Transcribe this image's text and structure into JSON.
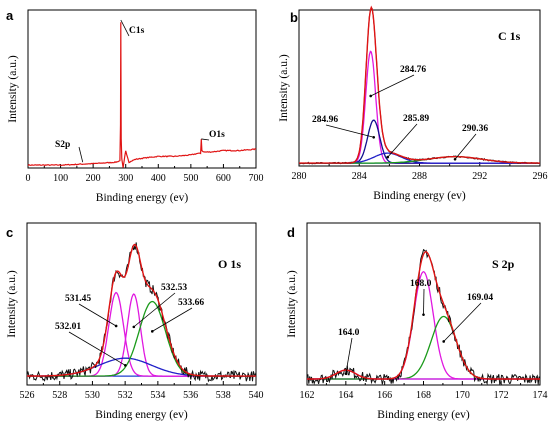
{
  "colors": {
    "raw": "#111111",
    "envelope": "#e01414",
    "baseline": "#1f3fd0",
    "comp_magenta": "#e018e0",
    "comp_blue": "#2020c8",
    "comp_green": "#1a9a1a",
    "comp_navy": "#101090",
    "survey": "#e01414"
  },
  "chart_data": [
    {
      "type": "line",
      "panel_label": "a",
      "xlabel": "Binding energy (ev)",
      "ylabel": "Intensity (a.u.)",
      "xlim": [
        0,
        700
      ],
      "xticks": [
        0,
        100,
        200,
        300,
        400,
        500,
        600,
        700
      ],
      "annotations": [
        {
          "text": "C1s",
          "x": 285
        },
        {
          "text": "O1s",
          "x": 532
        },
        {
          "text": "S2p",
          "x": 168
        }
      ],
      "series": [
        {
          "values_desc": "survey",
          "x": [
            0,
            100,
            200,
            270,
            282,
            284,
            285,
            286,
            288,
            292,
            300,
            310,
            330,
            360,
            400,
            450,
            500,
            520,
            530,
            532,
            534,
            540,
            560,
            600,
            650,
            700
          ],
          "y": [
            0.02,
            0.02,
            0.03,
            0.04,
            0.05,
            0.3,
            1.0,
            0.2,
            0.06,
            0.0,
            0.12,
            0.04,
            0.06,
            0.07,
            0.08,
            0.08,
            0.09,
            0.1,
            0.1,
            0.2,
            0.12,
            0.11,
            0.11,
            0.12,
            0.12,
            0.13
          ]
        }
      ]
    },
    {
      "type": "line",
      "panel_label": "b",
      "title": "C 1s",
      "xlabel": "Binding energy (ev)",
      "ylabel": "Intensity (a.u.)",
      "xlim": [
        280,
        296
      ],
      "xticks": [
        280,
        284,
        288,
        292,
        296
      ],
      "annotations": [
        {
          "text": "284.76",
          "x": 284.76
        },
        {
          "text": "284.96",
          "x": 284.96
        },
        {
          "text": "285.89",
          "x": 285.89
        },
        {
          "text": "290.36",
          "x": 290.36
        }
      ],
      "peaks": [
        {
          "center": 284.76,
          "height": 0.78,
          "width": 0.33,
          "color_key": "comp_magenta"
        },
        {
          "center": 284.96,
          "height": 0.3,
          "width": 0.4,
          "color_key": "comp_navy"
        },
        {
          "center": 285.89,
          "height": 0.07,
          "width": 0.9,
          "color_key": "comp_blue"
        },
        {
          "center": 290.36,
          "height": 0.045,
          "width": 1.8,
          "color_key": "comp_green"
        }
      ],
      "baseline": 0.02
    },
    {
      "type": "line",
      "panel_label": "c",
      "title": "O 1s",
      "xlabel": "Binding energy (ev)",
      "ylabel": "Intensity (a.u.)",
      "xlim": [
        526,
        540
      ],
      "xticks": [
        526,
        528,
        530,
        532,
        534,
        536,
        538,
        540
      ],
      "annotations": [
        {
          "text": "531.45",
          "x": 531.45
        },
        {
          "text": "532.53",
          "x": 532.53
        },
        {
          "text": "532.01",
          "x": 532.01
        },
        {
          "text": "533.66",
          "x": 533.66
        }
      ],
      "peaks": [
        {
          "center": 531.45,
          "height": 0.56,
          "width": 0.45,
          "color_key": "comp_magenta"
        },
        {
          "center": 532.53,
          "height": 0.55,
          "width": 0.4,
          "color_key": "comp_magenta"
        },
        {
          "center": 532.01,
          "height": 0.12,
          "width": 1.6,
          "color_key": "comp_blue"
        },
        {
          "center": 533.66,
          "height": 0.5,
          "width": 0.8,
          "color_key": "comp_green"
        }
      ],
      "baseline": 0.06
    },
    {
      "type": "line",
      "panel_label": "d",
      "title": "S 2p",
      "xlabel": "Binding energy (ev)",
      "ylabel": "Intensity (a.u.)",
      "xlim": [
        162,
        174
      ],
      "xticks": [
        162,
        164,
        166,
        168,
        170,
        172,
        174
      ],
      "annotations": [
        {
          "text": "168.0",
          "x": 168.0
        },
        {
          "text": "169.04",
          "x": 169.04
        },
        {
          "text": "164.0",
          "x": 164.0
        }
      ],
      "peaks": [
        {
          "center": 168.0,
          "height": 0.72,
          "width": 0.5,
          "color_key": "comp_magenta"
        },
        {
          "center": 169.04,
          "height": 0.42,
          "width": 0.65,
          "color_key": "comp_green"
        },
        {
          "center": 164.0,
          "height": 0.06,
          "width": 0.5,
          "color_key": "comp_magenta"
        }
      ],
      "baseline": 0.04
    }
  ]
}
